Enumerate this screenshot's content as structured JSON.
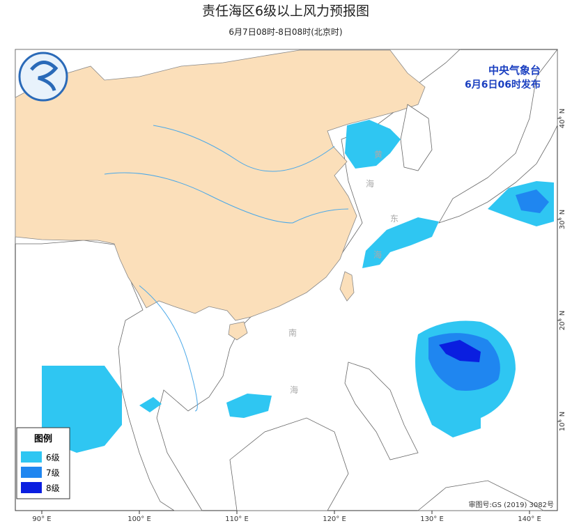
{
  "header": {
    "title": "责任海区6级以上风力预报图",
    "subtitle": "6月7日08时-8日08时(北京时)"
  },
  "issuer": {
    "name": "中央气象台",
    "time": "6月6日06时发布"
  },
  "map": {
    "lon_ticks": [
      {
        "value": 90,
        "label": "90° E"
      },
      {
        "value": 100,
        "label": "100° E"
      },
      {
        "value": 110,
        "label": "110° E"
      },
      {
        "value": 120,
        "label": "120° E"
      },
      {
        "value": 130,
        "label": "130° E"
      },
      {
        "value": 140,
        "label": "140° E"
      }
    ],
    "lat_ticks": [
      {
        "value": 40,
        "label": "40° N"
      },
      {
        "value": 30,
        "label": "30° N"
      },
      {
        "value": 20,
        "label": "20° N"
      },
      {
        "value": 10,
        "label": "10° N"
      }
    ],
    "sea_labels": [
      "黄",
      "海",
      "东",
      "海",
      "南",
      "海"
    ],
    "approval": "审图号:GS (2019) 3082号"
  },
  "legend": {
    "title": "图例",
    "items": [
      {
        "label": "6级",
        "color": "#2fc6f2"
      },
      {
        "label": "7级",
        "color": "#1f86f0"
      },
      {
        "label": "8级",
        "color": "#0a1ee0"
      }
    ]
  }
}
